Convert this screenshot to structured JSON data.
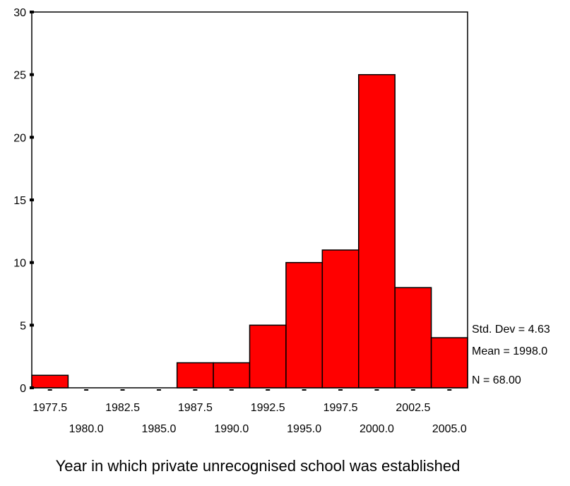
{
  "chart_data": {
    "type": "bar",
    "subtype": "histogram",
    "xlabel": "Year in which private unrecognised school was established",
    "ylabel": "",
    "ylim": [
      0,
      30
    ],
    "y_ticks": [
      0,
      5,
      10,
      15,
      20,
      25,
      30
    ],
    "bin_width": 2.5,
    "x_range": [
      1976.25,
      2006.25
    ],
    "x_tick_labels": [
      "1977.5",
      "1980.0",
      "1982.5",
      "1985.0",
      "1987.5",
      "1990.0",
      "1992.5",
      "1995.0",
      "1997.5",
      "2000.0",
      "2002.5",
      "2005.0"
    ],
    "bins": [
      1977.5,
      1980.0,
      1982.5,
      1985.0,
      1987.5,
      1990.0,
      1992.5,
      1995.0,
      1997.5,
      2000.0,
      2002.5,
      2005.0
    ],
    "values": [
      1,
      0,
      0,
      0,
      2,
      2,
      5,
      10,
      11,
      25,
      8,
      4
    ],
    "bar_color": "#ff0000",
    "grid": false,
    "stats": [
      "Std. Dev = 4.63",
      "Mean = 1998.0",
      "N = 68.00"
    ]
  }
}
